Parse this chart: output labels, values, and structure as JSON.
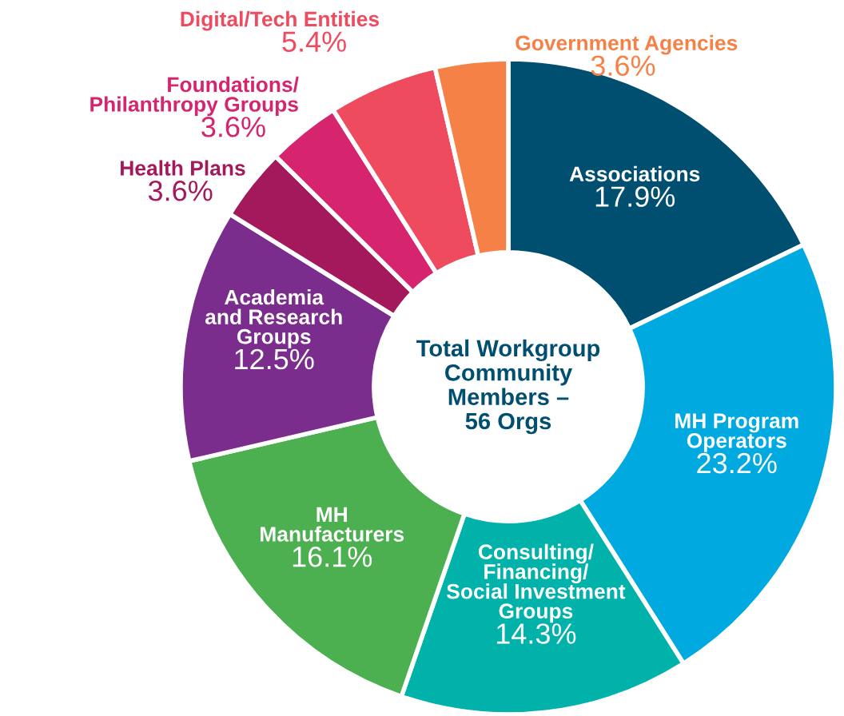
{
  "chart_data": {
    "type": "donut",
    "title": "Total Workgroup\nCommunity\nMembers –\n56 Orgs",
    "categories": [
      "Associations",
      "MH Program\nOperators",
      "Consulting/\nFinancing/\nSocial Investment\nGroups",
      "MH\nManufacturers",
      "Academia\nand Research\nGroups",
      "Health Plans",
      "Foundations/\nPhilanthropy Groups",
      "Digital/Tech Entities",
      "Government Agencies"
    ],
    "values": [
      17.9,
      23.2,
      14.3,
      16.1,
      12.5,
      3.6,
      3.6,
      5.4,
      3.6
    ],
    "value_labels": [
      "17.9%",
      "23.2%",
      "14.3%",
      "16.1%",
      "12.5%",
      "3.6%",
      "3.6%",
      "5.4%",
      "3.6%"
    ],
    "colors": [
      "#004f71",
      "#00a9e0",
      "#00b2a9",
      "#4caf50",
      "#7b2d8e",
      "#a3195b",
      "#d6246e",
      "#ef4b5f",
      "#f58146"
    ]
  }
}
